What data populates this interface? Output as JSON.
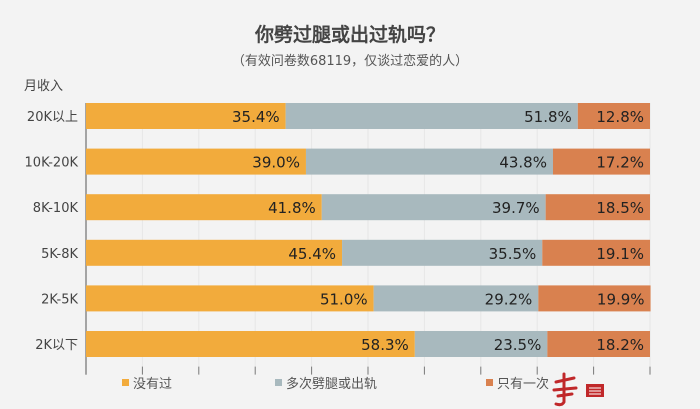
{
  "chart_data": {
    "type": "bar",
    "stacked": true,
    "orientation": "horizontal",
    "title": "你劈过腿或出过轨吗？",
    "subtitle": "（有效问卷数68119，仅谈过恋爱的人）",
    "ylabel": "月收入",
    "xlabel": "",
    "xlim": [
      0,
      100
    ],
    "categories": [
      "20K以上",
      "10K-20K",
      "8K-10K",
      "5K-8K",
      "2K-5K",
      "2K以下"
    ],
    "series": [
      {
        "name": "没有过",
        "color": "#F2AB3C",
        "values": [
          35.4,
          39.0,
          41.8,
          45.4,
          51.0,
          58.3
        ],
        "labels": [
          "35.4%",
          "39.0%",
          "41.8%",
          "45.4%",
          "51.0%",
          "58.3%"
        ]
      },
      {
        "name": "多次劈腿或出轨",
        "color": "#A8B9BE",
        "values": [
          51.8,
          43.8,
          39.7,
          35.5,
          29.2,
          23.5
        ],
        "labels": [
          "51.8%",
          "43.8%",
          "39.7%",
          "35.5%",
          "29.2%",
          "23.5%"
        ]
      },
      {
        "name": "只有一次",
        "color": "#D9814F",
        "values": [
          12.8,
          17.2,
          18.5,
          19.1,
          19.9,
          18.2
        ],
        "labels": [
          "12.8%",
          "17.2%",
          "18.5%",
          "19.1%",
          "19.9%",
          "18.2%"
        ]
      }
    ],
    "legend_position": "bottom",
    "grid": true
  },
  "logo_text": "事 报告"
}
